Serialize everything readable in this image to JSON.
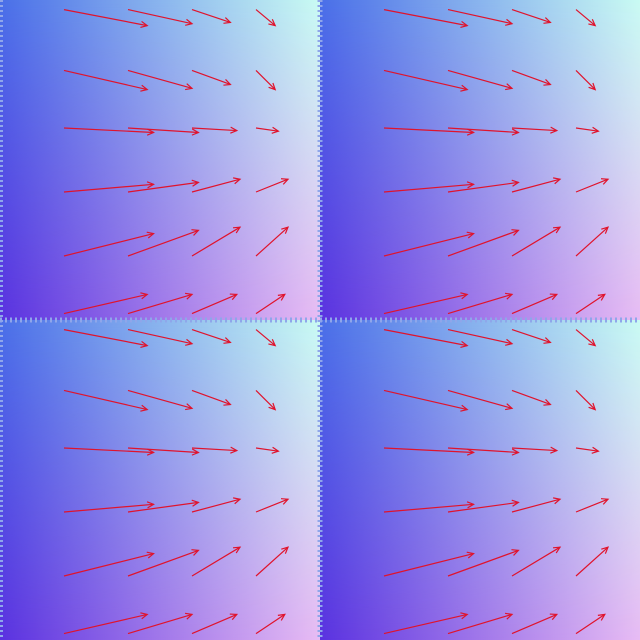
{
  "image": {
    "kind": "vector-field-render",
    "tiles": {
      "rows": 2,
      "cols": 2
    },
    "gradient": {
      "top_left": "#4a6fe8",
      "top_right": "#c9fbf3",
      "bottom_left": "#5a32e0",
      "bottom_right": "#e8bcf4",
      "seam_color": "#8fa6ea"
    },
    "arrow_color": "#e0132c",
    "arrow_rows": [
      {
        "y": 0.03,
        "vectors": [
          {
            "dx": 0.13,
            "dy": 0.025
          },
          {
            "dx": 0.1,
            "dy": 0.022
          },
          {
            "dx": 0.06,
            "dy": 0.02
          },
          {
            "dx": 0.03,
            "dy": 0.025
          }
        ]
      },
      {
        "y": 0.22,
        "vectors": [
          {
            "dx": 0.13,
            "dy": 0.03
          },
          {
            "dx": 0.1,
            "dy": 0.028
          },
          {
            "dx": 0.06,
            "dy": 0.022
          },
          {
            "dx": 0.03,
            "dy": 0.03
          }
        ]
      },
      {
        "y": 0.4,
        "vectors": [
          {
            "dx": 0.14,
            "dy": 0.007
          },
          {
            "dx": 0.11,
            "dy": 0.007
          },
          {
            "dx": 0.07,
            "dy": 0.004
          },
          {
            "dx": 0.035,
            "dy": 0.005
          }
        ]
      },
      {
        "y": 0.6,
        "vectors": [
          {
            "dx": 0.14,
            "dy": -0.012
          },
          {
            "dx": 0.11,
            "dy": -0.015
          },
          {
            "dx": 0.075,
            "dy": -0.02
          },
          {
            "dx": 0.05,
            "dy": -0.02
          }
        ]
      },
      {
        "y": 0.8,
        "vectors": [
          {
            "dx": 0.14,
            "dy": -0.035
          },
          {
            "dx": 0.11,
            "dy": -0.04
          },
          {
            "dx": 0.075,
            "dy": -0.045
          },
          {
            "dx": 0.05,
            "dy": -0.045
          }
        ]
      },
      {
        "y": 0.98,
        "vectors": [
          {
            "dx": 0.13,
            "dy": -0.03
          },
          {
            "dx": 0.1,
            "dy": -0.03
          },
          {
            "dx": 0.07,
            "dy": -0.03
          },
          {
            "dx": 0.045,
            "dy": -0.03
          }
        ]
      }
    ],
    "arrow_columns": [
      0.2,
      0.4,
      0.6,
      0.8
    ]
  }
}
